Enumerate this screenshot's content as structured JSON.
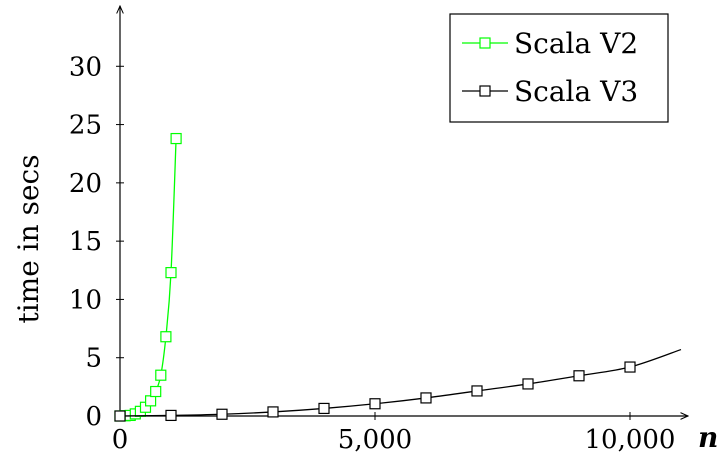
{
  "chart_data": {
    "type": "line",
    "title": "",
    "xlabel": "n",
    "ylabel": "time in secs",
    "xlim": [
      0,
      11000
    ],
    "ylim": [
      0,
      35
    ],
    "x_ticks": [
      0,
      5000,
      10000
    ],
    "x_tick_labels": [
      "0",
      "5,000",
      "10,000"
    ],
    "y_ticks": [
      0,
      5,
      10,
      15,
      20,
      25,
      30
    ],
    "y_tick_labels": [
      "0",
      "5",
      "10",
      "15",
      "20",
      "25",
      "30"
    ],
    "grid": false,
    "legend_position": "top-right",
    "series": [
      {
        "name": "Scala V2",
        "color": "#00ff00",
        "marker": "square",
        "x": [
          0,
          100,
          200,
          300,
          400,
          500,
          600,
          700,
          800,
          900,
          1000,
          1100
        ],
        "y": [
          0,
          0.02,
          0.05,
          0.18,
          0.4,
          0.75,
          1.3,
          2.1,
          3.5,
          6.8,
          12.3,
          23.8
        ]
      },
      {
        "name": "Scala V3",
        "color": "#000000",
        "marker": "square",
        "x": [
          0,
          1000,
          2000,
          3000,
          4000,
          5000,
          6000,
          7000,
          8000,
          9000,
          10000,
          11000
        ],
        "y": [
          0,
          0.05,
          0.15,
          0.35,
          0.65,
          1.05,
          1.55,
          2.15,
          2.75,
          3.45,
          4.2,
          5.7
        ],
        "markers_shown": 11
      }
    ]
  }
}
